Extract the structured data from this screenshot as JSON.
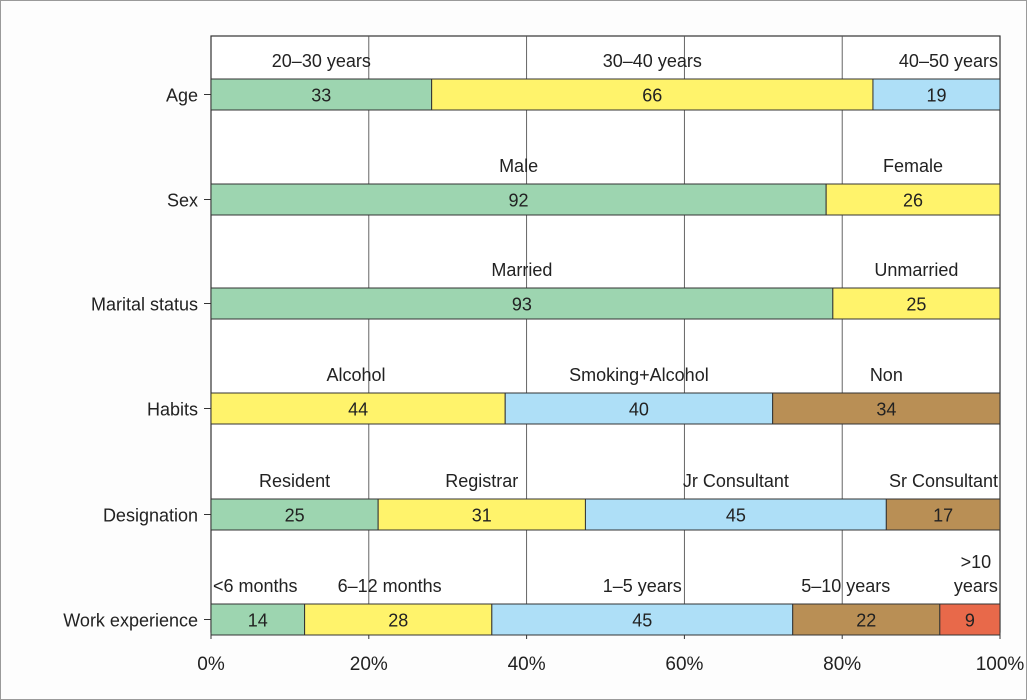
{
  "chart_data": {
    "type": "bar",
    "orientation": "horizontal",
    "stacked": true,
    "normalized_percent": true,
    "categories": [
      "Age",
      "Sex",
      "Marital status",
      "Habits",
      "Designation",
      "Work experience"
    ],
    "groups": [
      {
        "category": "Age",
        "segments": [
          {
            "label": "20–30 years",
            "value": 33,
            "color": "#9dd5b0"
          },
          {
            "label": "30–40 years",
            "value": 66,
            "color": "#fff36b"
          },
          {
            "label": "40–50 years",
            "value": 19,
            "color": "#aedff7"
          }
        ]
      },
      {
        "category": "Sex",
        "segments": [
          {
            "label": "Male",
            "value": 92,
            "color": "#9dd5b0"
          },
          {
            "label": "Female",
            "value": 26,
            "color": "#fff36b"
          }
        ]
      },
      {
        "category": "Marital status",
        "segments": [
          {
            "label": "Married",
            "value": 93,
            "color": "#9dd5b0"
          },
          {
            "label": "Unmarried",
            "value": 25,
            "color": "#fff36b"
          }
        ]
      },
      {
        "category": "Habits",
        "segments": [
          {
            "label": "",
            "value": 0,
            "color": "#9dd5b0"
          },
          {
            "label": "Alcohol",
            "value": 44,
            "color": "#fff36b"
          },
          {
            "label": "Smoking+Alcohol",
            "value": 40,
            "color": "#aedff7"
          },
          {
            "label": "Non",
            "value": 34,
            "color": "#b98f55"
          }
        ]
      },
      {
        "category": "Designation",
        "segments": [
          {
            "label": "Resident",
            "value": 25,
            "color": "#9dd5b0"
          },
          {
            "label": "Registrar",
            "value": 31,
            "color": "#fff36b"
          },
          {
            "label": "Jr Consultant",
            "value": 45,
            "color": "#aedff7"
          },
          {
            "label": "Sr Consultant",
            "value": 17,
            "color": "#b98f55"
          }
        ]
      },
      {
        "category": "Work experience",
        "segments": [
          {
            "label": "<6 months",
            "value": 14,
            "color": "#9dd5b0"
          },
          {
            "label": "6–12 months",
            "value": 28,
            "color": "#fff36b"
          },
          {
            "label": "1–5 years",
            "value": 45,
            "color": "#aedff7"
          },
          {
            "label": "5–10 years",
            "value": 22,
            "color": "#b98f55"
          },
          {
            "label": ">10 years",
            "value": 9,
            "color": "#e8694a"
          }
        ]
      }
    ],
    "xticks": [
      "0%",
      "20%",
      "40%",
      "60%",
      "80%",
      "100%"
    ],
    "xlim": [
      0,
      100
    ],
    "grid": true,
    "title": "",
    "xlabel": "",
    "ylabel": ""
  }
}
